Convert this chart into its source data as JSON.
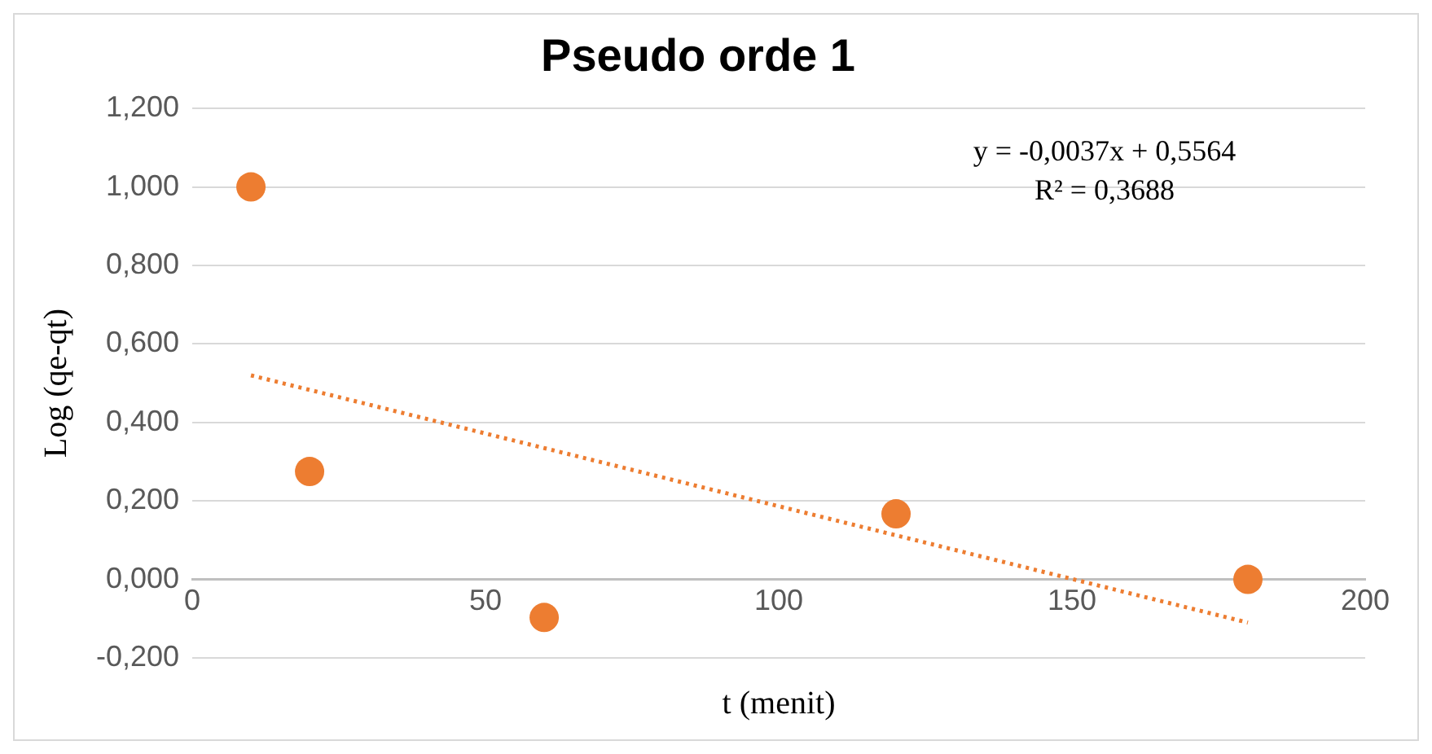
{
  "chart_data": {
    "type": "scatter",
    "title": "Pseudo orde 1",
    "xlabel": "t (menit)",
    "ylabel": "Log (qe-qt)",
    "x": [
      10,
      20,
      60,
      120,
      180
    ],
    "series": [
      {
        "color": "#ed7d31",
        "values": [
          1.0,
          0.275,
          -0.097,
          0.167,
          0.0
        ],
        "marker": "circle"
      },
      {
        "type": "line",
        "color": "#ed7d31",
        "x": [
          10,
          180
        ],
        "values": [
          0.52,
          -0.11
        ],
        "line_style": "dotted",
        "marker": "none"
      }
    ],
    "annotations": [
      "y = -0,0037x + 0,5564",
      "R² = 0,3688"
    ],
    "xlim": [
      0,
      200
    ],
    "xticks": [
      0,
      50,
      100,
      150,
      200
    ],
    "ylim": [
      -0.2,
      1.2
    ],
    "yticks": [
      {
        "value": -0.2,
        "label": "-0,200"
      },
      {
        "value": 0,
        "label": "0,000"
      },
      {
        "value": 0.2,
        "label": "0,200"
      },
      {
        "value": 0.4,
        "label": "0,400"
      },
      {
        "value": 0.6,
        "label": "0,600"
      },
      {
        "value": 0.8,
        "label": "0,800"
      },
      {
        "value": 1,
        "label": "1,000"
      },
      {
        "value": 1.2,
        "label": "1,200"
      }
    ],
    "grid": "y",
    "legend": false
  }
}
